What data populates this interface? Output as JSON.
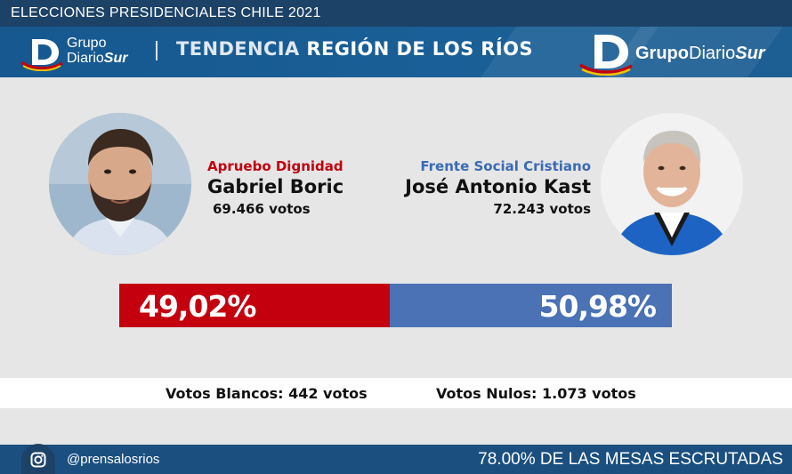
{
  "top_bar": {
    "title": "ELECCIONES PRESIDENCIALES CHILE 2021"
  },
  "header": {
    "small_logo_line1": "Grupo",
    "small_logo_line2_a": "Diario",
    "small_logo_line2_b": "Sur",
    "title_a": "TENDENCIA ",
    "title_b": "REGIÓN DE LOS RÍOS",
    "brand_a": "Grupo",
    "brand_b": "Diario",
    "brand_c": "Sur"
  },
  "candidates": [
    {
      "party": "Apruebo Dignidad",
      "name": "Gabriel Boric",
      "votes": "69.466 votos",
      "percent": "49,02%",
      "share": 49.02,
      "color": "#c4000f"
    },
    {
      "party": "Frente Social Cristiano",
      "name": "José Antonio Kast",
      "votes": "72.243 votos",
      "percent": "50,98%",
      "share": 50.98,
      "color": "#4a72b5"
    }
  ],
  "extra": {
    "blancos": "Votos Blancos: 442 votos",
    "nulos": "Votos Nulos: 1.073 votos"
  },
  "footer": {
    "icon": "instagram-icon",
    "handle": "@prensalosrios",
    "mesas": "78.00% DE LAS MESAS ESCRUTADAS"
  }
}
